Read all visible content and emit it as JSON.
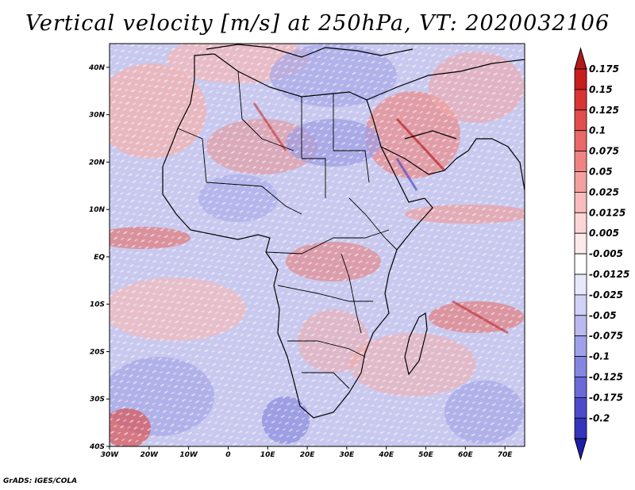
{
  "title": "Vertical velocity [m/s] at 250hPa, VT: 2020032106",
  "credit": "GrADS: IGES/COLA",
  "map": {
    "lon_range": [
      -30,
      75
    ],
    "lat_range": [
      -40,
      45
    ],
    "lat_ticks": [
      {
        "value": 40,
        "label": "40N"
      },
      {
        "value": 30,
        "label": "30N"
      },
      {
        "value": 20,
        "label": "20N"
      },
      {
        "value": 10,
        "label": "10N"
      },
      {
        "value": 0,
        "label": "EQ"
      },
      {
        "value": -10,
        "label": "10S"
      },
      {
        "value": -20,
        "label": "20S"
      },
      {
        "value": -30,
        "label": "30S"
      },
      {
        "value": -40,
        "label": "40S"
      }
    ],
    "lon_ticks": [
      {
        "value": -30,
        "label": "30W"
      },
      {
        "value": -20,
        "label": "20W"
      },
      {
        "value": -10,
        "label": "10W"
      },
      {
        "value": 0,
        "label": "0"
      },
      {
        "value": 10,
        "label": "10E"
      },
      {
        "value": 20,
        "label": "20E"
      },
      {
        "value": 30,
        "label": "30E"
      },
      {
        "value": 40,
        "label": "40E"
      },
      {
        "value": 50,
        "label": "50E"
      },
      {
        "value": 60,
        "label": "60E"
      },
      {
        "value": 70,
        "label": "70E"
      }
    ]
  },
  "colorbar": {
    "levels": [
      {
        "label": "0.175",
        "color": "#c81e1e"
      },
      {
        "label": "0.15",
        "color": "#d83535"
      },
      {
        "label": "0.125",
        "color": "#e24e4e"
      },
      {
        "label": "0.1",
        "color": "#ea6868"
      },
      {
        "label": "0.075",
        "color": "#f08484"
      },
      {
        "label": "0.05",
        "color": "#f4a0a0"
      },
      {
        "label": "0.025",
        "color": "#f8bcbc"
      },
      {
        "label": "0.0125",
        "color": "#fbd6d6"
      },
      {
        "label": "0.005",
        "color": "#fdeaea"
      },
      {
        "label": "-0.005",
        "color": "#ffffff"
      },
      {
        "label": "-0.0125",
        "color": "#e8e8fb"
      },
      {
        "label": "-0.025",
        "color": "#d2d2f6"
      },
      {
        "label": "-0.05",
        "color": "#babaf0"
      },
      {
        "label": "-0.075",
        "color": "#a0a0ea"
      },
      {
        "label": "-0.1",
        "color": "#8686e2"
      },
      {
        "label": "-0.125",
        "color": "#6a6ad8"
      },
      {
        "label": "-0.175",
        "color": "#4c4cca"
      },
      {
        "label": "-0.2",
        "color": "#3434bc"
      }
    ],
    "top_color": "#b21a1a",
    "bottom_color": "#1e1eaa"
  }
}
